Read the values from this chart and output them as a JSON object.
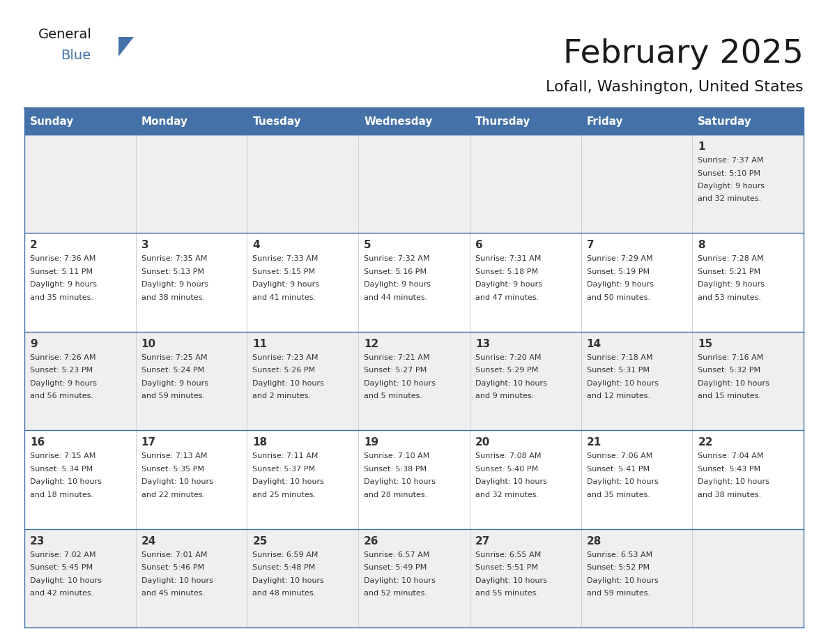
{
  "title": "February 2025",
  "subtitle": "Lofall, Washington, United States",
  "header_bg_color": "#4472a8",
  "header_text_color": "#ffffff",
  "cell_bg_color_odd": "#efefef",
  "cell_bg_color_even": "#ffffff",
  "text_color": "#333333",
  "border_color": "#4472a8",
  "days_of_week": [
    "Sunday",
    "Monday",
    "Tuesday",
    "Wednesday",
    "Thursday",
    "Friday",
    "Saturday"
  ],
  "weeks": [
    [
      {
        "day": null,
        "info": null
      },
      {
        "day": null,
        "info": null
      },
      {
        "day": null,
        "info": null
      },
      {
        "day": null,
        "info": null
      },
      {
        "day": null,
        "info": null
      },
      {
        "day": null,
        "info": null
      },
      {
        "day": 1,
        "sunrise": "Sunrise: 7:37 AM",
        "sunset": "Sunset: 5:10 PM",
        "daylight": "Daylight: 9 hours",
        "daylight2": "and 32 minutes."
      }
    ],
    [
      {
        "day": 2,
        "sunrise": "Sunrise: 7:36 AM",
        "sunset": "Sunset: 5:11 PM",
        "daylight": "Daylight: 9 hours",
        "daylight2": "and 35 minutes."
      },
      {
        "day": 3,
        "sunrise": "Sunrise: 7:35 AM",
        "sunset": "Sunset: 5:13 PM",
        "daylight": "Daylight: 9 hours",
        "daylight2": "and 38 minutes."
      },
      {
        "day": 4,
        "sunrise": "Sunrise: 7:33 AM",
        "sunset": "Sunset: 5:15 PM",
        "daylight": "Daylight: 9 hours",
        "daylight2": "and 41 minutes."
      },
      {
        "day": 5,
        "sunrise": "Sunrise: 7:32 AM",
        "sunset": "Sunset: 5:16 PM",
        "daylight": "Daylight: 9 hours",
        "daylight2": "and 44 minutes."
      },
      {
        "day": 6,
        "sunrise": "Sunrise: 7:31 AM",
        "sunset": "Sunset: 5:18 PM",
        "daylight": "Daylight: 9 hours",
        "daylight2": "and 47 minutes."
      },
      {
        "day": 7,
        "sunrise": "Sunrise: 7:29 AM",
        "sunset": "Sunset: 5:19 PM",
        "daylight": "Daylight: 9 hours",
        "daylight2": "and 50 minutes."
      },
      {
        "day": 8,
        "sunrise": "Sunrise: 7:28 AM",
        "sunset": "Sunset: 5:21 PM",
        "daylight": "Daylight: 9 hours",
        "daylight2": "and 53 minutes."
      }
    ],
    [
      {
        "day": 9,
        "sunrise": "Sunrise: 7:26 AM",
        "sunset": "Sunset: 5:23 PM",
        "daylight": "Daylight: 9 hours",
        "daylight2": "and 56 minutes."
      },
      {
        "day": 10,
        "sunrise": "Sunrise: 7:25 AM",
        "sunset": "Sunset: 5:24 PM",
        "daylight": "Daylight: 9 hours",
        "daylight2": "and 59 minutes."
      },
      {
        "day": 11,
        "sunrise": "Sunrise: 7:23 AM",
        "sunset": "Sunset: 5:26 PM",
        "daylight": "Daylight: 10 hours",
        "daylight2": "and 2 minutes."
      },
      {
        "day": 12,
        "sunrise": "Sunrise: 7:21 AM",
        "sunset": "Sunset: 5:27 PM",
        "daylight": "Daylight: 10 hours",
        "daylight2": "and 5 minutes."
      },
      {
        "day": 13,
        "sunrise": "Sunrise: 7:20 AM",
        "sunset": "Sunset: 5:29 PM",
        "daylight": "Daylight: 10 hours",
        "daylight2": "and 9 minutes."
      },
      {
        "day": 14,
        "sunrise": "Sunrise: 7:18 AM",
        "sunset": "Sunset: 5:31 PM",
        "daylight": "Daylight: 10 hours",
        "daylight2": "and 12 minutes."
      },
      {
        "day": 15,
        "sunrise": "Sunrise: 7:16 AM",
        "sunset": "Sunset: 5:32 PM",
        "daylight": "Daylight: 10 hours",
        "daylight2": "and 15 minutes."
      }
    ],
    [
      {
        "day": 16,
        "sunrise": "Sunrise: 7:15 AM",
        "sunset": "Sunset: 5:34 PM",
        "daylight": "Daylight: 10 hours",
        "daylight2": "and 18 minutes."
      },
      {
        "day": 17,
        "sunrise": "Sunrise: 7:13 AM",
        "sunset": "Sunset: 5:35 PM",
        "daylight": "Daylight: 10 hours",
        "daylight2": "and 22 minutes."
      },
      {
        "day": 18,
        "sunrise": "Sunrise: 7:11 AM",
        "sunset": "Sunset: 5:37 PM",
        "daylight": "Daylight: 10 hours",
        "daylight2": "and 25 minutes."
      },
      {
        "day": 19,
        "sunrise": "Sunrise: 7:10 AM",
        "sunset": "Sunset: 5:38 PM",
        "daylight": "Daylight: 10 hours",
        "daylight2": "and 28 minutes."
      },
      {
        "day": 20,
        "sunrise": "Sunrise: 7:08 AM",
        "sunset": "Sunset: 5:40 PM",
        "daylight": "Daylight: 10 hours",
        "daylight2": "and 32 minutes."
      },
      {
        "day": 21,
        "sunrise": "Sunrise: 7:06 AM",
        "sunset": "Sunset: 5:41 PM",
        "daylight": "Daylight: 10 hours",
        "daylight2": "and 35 minutes."
      },
      {
        "day": 22,
        "sunrise": "Sunrise: 7:04 AM",
        "sunset": "Sunset: 5:43 PM",
        "daylight": "Daylight: 10 hours",
        "daylight2": "and 38 minutes."
      }
    ],
    [
      {
        "day": 23,
        "sunrise": "Sunrise: 7:02 AM",
        "sunset": "Sunset: 5:45 PM",
        "daylight": "Daylight: 10 hours",
        "daylight2": "and 42 minutes."
      },
      {
        "day": 24,
        "sunrise": "Sunrise: 7:01 AM",
        "sunset": "Sunset: 5:46 PM",
        "daylight": "Daylight: 10 hours",
        "daylight2": "and 45 minutes."
      },
      {
        "day": 25,
        "sunrise": "Sunrise: 6:59 AM",
        "sunset": "Sunset: 5:48 PM",
        "daylight": "Daylight: 10 hours",
        "daylight2": "and 48 minutes."
      },
      {
        "day": 26,
        "sunrise": "Sunrise: 6:57 AM",
        "sunset": "Sunset: 5:49 PM",
        "daylight": "Daylight: 10 hours",
        "daylight2": "and 52 minutes."
      },
      {
        "day": 27,
        "sunrise": "Sunrise: 6:55 AM",
        "sunset": "Sunset: 5:51 PM",
        "daylight": "Daylight: 10 hours",
        "daylight2": "and 55 minutes."
      },
      {
        "day": 28,
        "sunrise": "Sunrise: 6:53 AM",
        "sunset": "Sunset: 5:52 PM",
        "daylight": "Daylight: 10 hours",
        "daylight2": "and 59 minutes."
      },
      {
        "day": null,
        "sunrise": null,
        "sunset": null,
        "daylight": null,
        "daylight2": null
      }
    ]
  ],
  "logo_triangle_color": "#4472a8",
  "logo_general_color": "#1a1a1a",
  "logo_blue_color": "#4472a8"
}
